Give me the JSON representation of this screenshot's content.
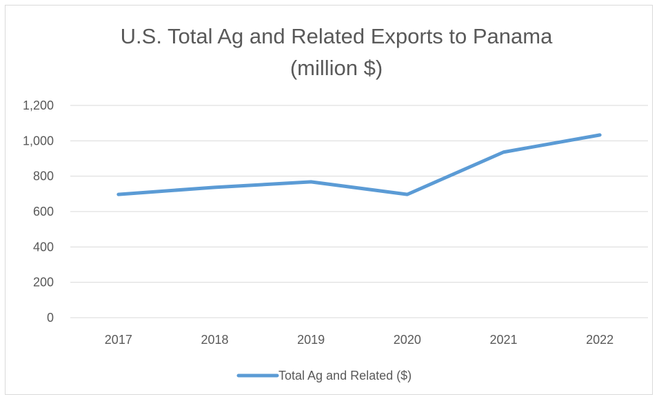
{
  "chart_data": {
    "type": "line",
    "title": "U.S. Total Ag and Related Exports to Panama",
    "subtitle": "(million $)",
    "categories": [
      "2017",
      "2018",
      "2019",
      "2020",
      "2021",
      "2022"
    ],
    "series": [
      {
        "name": "Total Ag and Related ($)",
        "values": [
          697,
          737,
          768,
          697,
          936,
          1033
        ],
        "color": "#5b9bd5"
      }
    ],
    "ylim": [
      0,
      1200
    ],
    "yticks": [
      "0",
      "200",
      "400",
      "600",
      "800",
      "1,000",
      "1,200"
    ],
    "ytick_values": [
      0,
      200,
      400,
      600,
      800,
      1000,
      1200
    ],
    "grid": true,
    "legend_position": "bottom",
    "gridline_color": "#d9d9d9",
    "axis_color": "#d9d9d9"
  }
}
